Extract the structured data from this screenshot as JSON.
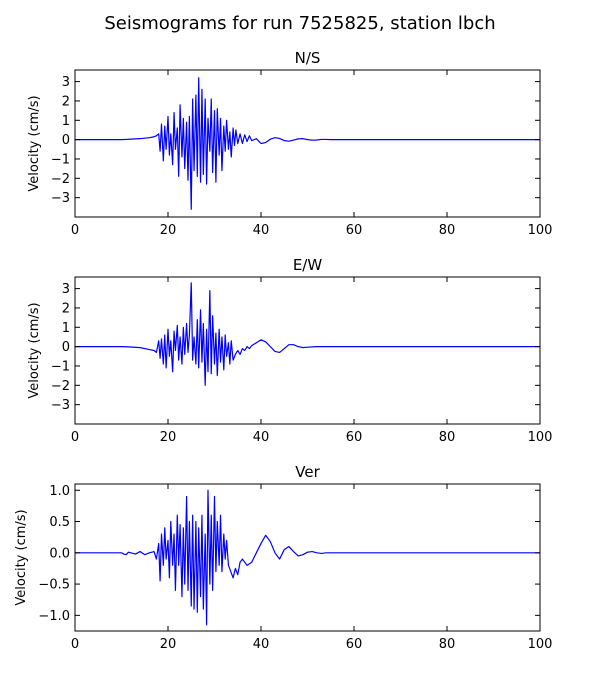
{
  "figure": {
    "title": "Seismograms for run 7525825, station lbch"
  },
  "chart_data": [
    {
      "type": "line",
      "title": "N/S",
      "xlabel": "",
      "ylabel": "Velocity (cm/s)",
      "xlim": [
        0,
        100
      ],
      "ylim": [
        -4,
        3.6
      ],
      "xticks": [
        0,
        20,
        40,
        60,
        80,
        100
      ],
      "yticks": [
        -3,
        -2,
        -1,
        0,
        1,
        2,
        3
      ],
      "color": "#0000ff",
      "series": [
        {
          "x": [
            0,
            10,
            14,
            16,
            17,
            17.5,
            18,
            18.3,
            18.6,
            19,
            19.3,
            19.6,
            20,
            20.3,
            20.6,
            21,
            21.3,
            21.6,
            22,
            22.3,
            22.6,
            23,
            23.3,
            23.6,
            24,
            24.3,
            24.6,
            25,
            25.3,
            25.6,
            26,
            26.3,
            26.6,
            27,
            27.3,
            27.6,
            28,
            28.3,
            28.6,
            29,
            29.3,
            29.6,
            30,
            30.3,
            30.6,
            31,
            31.3,
            31.6,
            32,
            32.3,
            32.6,
            33,
            33.3,
            33.6,
            34,
            34.3,
            34.6,
            35,
            35.5,
            36,
            36.5,
            37,
            37.5,
            38,
            39,
            40,
            41,
            42,
            43,
            44,
            45,
            46,
            47,
            48,
            49,
            50,
            51,
            52,
            53,
            54,
            55,
            56,
            58,
            100
          ],
          "y": [
            0,
            0,
            0.05,
            0.1,
            0.15,
            0.2,
            0.3,
            -0.6,
            0.8,
            -1.1,
            0.7,
            -0.5,
            1.2,
            -0.8,
            0.3,
            -1.3,
            1.4,
            -0.5,
            0.6,
            -1.9,
            1.8,
            -0.9,
            1.1,
            -1.5,
            0.9,
            -2.1,
            1.2,
            -3.6,
            2.1,
            -1.6,
            2.3,
            -1.9,
            3.2,
            -2.2,
            2.6,
            -1.8,
            2.1,
            -2.3,
            1.1,
            -0.6,
            2.1,
            -1.7,
            1.5,
            -2.2,
            1.6,
            -0.8,
            1.1,
            -1.6,
            0.7,
            -0.6,
            1.0,
            -0.5,
            0.4,
            -0.9,
            0.6,
            -0.3,
            0.5,
            -0.2,
            0.3,
            -0.2,
            0.25,
            -0.1,
            0.2,
            -0.05,
            0.05,
            -0.2,
            -0.15,
            0.02,
            0.1,
            0.06,
            -0.05,
            -0.08,
            -0.02,
            0.04,
            0.05,
            0,
            -0.03,
            -0.02,
            0.01,
            0.01,
            0,
            0,
            0,
            0
          ]
        }
      ]
    },
    {
      "type": "line",
      "title": "E/W",
      "xlabel": "",
      "ylabel": "Velocity (cm/s)",
      "xlim": [
        0,
        100
      ],
      "ylim": [
        -4,
        3.6
      ],
      "xticks": [
        0,
        20,
        40,
        60,
        80,
        100
      ],
      "yticks": [
        -3,
        -2,
        -1,
        0,
        1,
        2,
        3
      ],
      "color": "#0000ff",
      "series": [
        {
          "x": [
            0,
            10,
            12,
            14,
            16,
            17,
            17.5,
            18,
            18.3,
            18.6,
            19,
            19.3,
            19.6,
            20,
            20.3,
            20.6,
            21,
            21.3,
            21.6,
            22,
            22.3,
            22.6,
            23,
            23.3,
            23.6,
            24,
            24.3,
            24.6,
            25,
            25.3,
            25.6,
            26,
            26.3,
            26.6,
            27,
            27.3,
            27.6,
            28,
            28.3,
            28.6,
            29,
            29.3,
            29.6,
            30,
            30.3,
            30.6,
            31,
            31.3,
            31.6,
            32,
            32.3,
            32.6,
            33,
            33.3,
            33.6,
            34,
            34.5,
            35,
            35.5,
            36,
            36.5,
            37,
            37.5,
            38,
            39,
            40,
            41,
            42,
            43,
            44,
            45,
            46,
            47,
            48,
            49,
            50,
            52,
            55,
            100
          ],
          "y": [
            0,
            0,
            -0.02,
            -0.05,
            -0.15,
            -0.2,
            -0.3,
            0.3,
            -0.6,
            0.4,
            -0.9,
            0.6,
            -1.1,
            0.9,
            -0.5,
            0.3,
            -1.3,
            0.8,
            -0.2,
            1.1,
            -0.7,
            0.5,
            -0.9,
            1.0,
            -0.4,
            1.2,
            -0.3,
            0.6,
            3.3,
            -0.7,
            0.5,
            -0.9,
            1.4,
            -1.1,
            1.9,
            -0.8,
            1.2,
            -2.0,
            0.9,
            -1.3,
            2.9,
            -1.4,
            1.6,
            -0.9,
            0.7,
            -1.5,
            0.9,
            -0.8,
            0.5,
            -1.2,
            0.6,
            -0.5,
            0.2,
            -0.9,
            0.3,
            -0.7,
            -0.4,
            -0.2,
            -0.4,
            -0.1,
            -0.2,
            0,
            -0.1,
            0.05,
            0.2,
            0.35,
            0.25,
            0,
            -0.25,
            -0.3,
            -0.1,
            0.1,
            0.1,
            0,
            -0.05,
            -0.03,
            0,
            0,
            0
          ]
        }
      ]
    },
    {
      "type": "line",
      "title": "Ver",
      "xlabel": "",
      "ylabel": "Velocity (cm/s)",
      "xlim": [
        0,
        100
      ],
      "ylim": [
        -1.25,
        1.1
      ],
      "xticks": [
        0,
        20,
        40,
        60,
        80,
        100
      ],
      "yticks": [
        -1.0,
        -0.5,
        0.0,
        0.5,
        1.0
      ],
      "ytickfmt": 1,
      "color": "#0000ff",
      "series": [
        {
          "x": [
            0,
            10,
            10.5,
            11,
            11.5,
            12,
            13,
            14,
            15,
            16,
            17,
            17.5,
            18,
            18.3,
            18.6,
            19,
            19.3,
            19.6,
            20,
            20.3,
            20.6,
            21,
            21.3,
            21.6,
            22,
            22.3,
            22.6,
            23,
            23.3,
            23.6,
            24,
            24.3,
            24.6,
            25,
            25.3,
            25.6,
            26,
            26.3,
            26.6,
            27,
            27.3,
            27.6,
            28,
            28.3,
            28.6,
            29,
            29.3,
            29.6,
            30,
            30.3,
            30.6,
            31,
            31.3,
            31.6,
            32,
            32.3,
            32.6,
            33,
            33.5,
            34,
            34.5,
            35,
            35.5,
            36,
            37,
            38,
            39,
            40,
            41,
            42,
            43,
            44,
            45,
            46,
            47,
            48,
            49,
            50,
            51,
            52,
            53,
            54,
            55,
            60,
            100
          ],
          "y": [
            0,
            0,
            -0.02,
            -0.03,
            0.01,
            0,
            -0.02,
            0.02,
            -0.03,
            0,
            0.02,
            -0.1,
            0.15,
            -0.45,
            0.3,
            -0.2,
            0.4,
            -0.1,
            0.2,
            -0.4,
            0.5,
            -0.2,
            0.3,
            -0.6,
            0.6,
            -0.2,
            0.45,
            -0.7,
            0.4,
            -0.5,
            0.9,
            -0.6,
            0.5,
            -0.85,
            0.6,
            -0.9,
            0.5,
            -0.95,
            0.4,
            -0.7,
            0.6,
            -0.9,
            0.3,
            -1.15,
            1.0,
            -0.5,
            0.6,
            -0.6,
            0.9,
            -0.3,
            0.5,
            -0.2,
            0.6,
            -0.3,
            0.3,
            -0.1,
            0.2,
            -0.2,
            -0.3,
            -0.4,
            -0.25,
            -0.35,
            -0.15,
            -0.1,
            -0.2,
            -0.15,
            0,
            0.15,
            0.28,
            0.18,
            0,
            -0.1,
            0.05,
            0.1,
            0.02,
            -0.05,
            -0.03,
            0.01,
            0.02,
            0,
            -0.01,
            0,
            0,
            0,
            0
          ]
        }
      ]
    }
  ]
}
